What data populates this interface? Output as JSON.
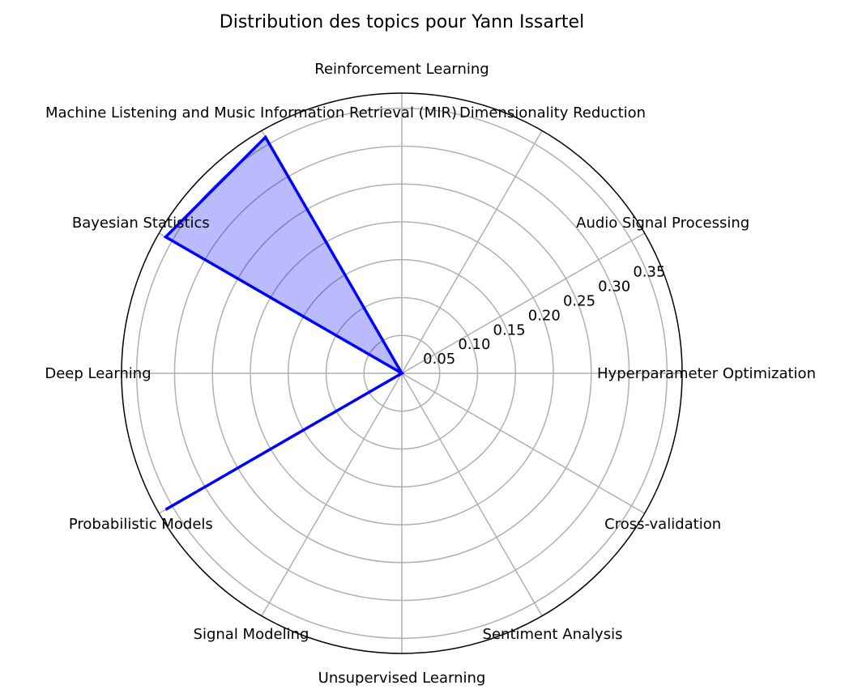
{
  "chart_data": {
    "type": "radar",
    "title": "Distribution des topics pour Yann Issartel",
    "categories": [
      "Hyperparameter Optimization",
      "Audio Signal Processing",
      "Dimensionality Reduction",
      "Reinforcement Learning",
      "Machine Listening and Music Information Retrieval (MIR)",
      "Bayesian Statistics",
      "Deep Learning",
      "Probabilistic Models",
      "Signal Modeling",
      "Unsupervised Learning",
      "Sentiment Analysis",
      "Cross-validation"
    ],
    "values": [
      0,
      0,
      0,
      0,
      0.36,
      0.36,
      0,
      0.36,
      0,
      0,
      0,
      0
    ],
    "rlim": [
      0,
      0.37
    ],
    "rticks": [
      0.05,
      0.1,
      0.15,
      0.2,
      0.25,
      0.3,
      0.35
    ],
    "rtick_labels": [
      "0.05",
      "0.10",
      "0.15",
      "0.20",
      "0.25",
      "0.30",
      "0.35"
    ],
    "grid": true,
    "colors": {
      "line": "#0000ff",
      "fill": "#0000ff",
      "grid": "#b0b0b0"
    }
  }
}
